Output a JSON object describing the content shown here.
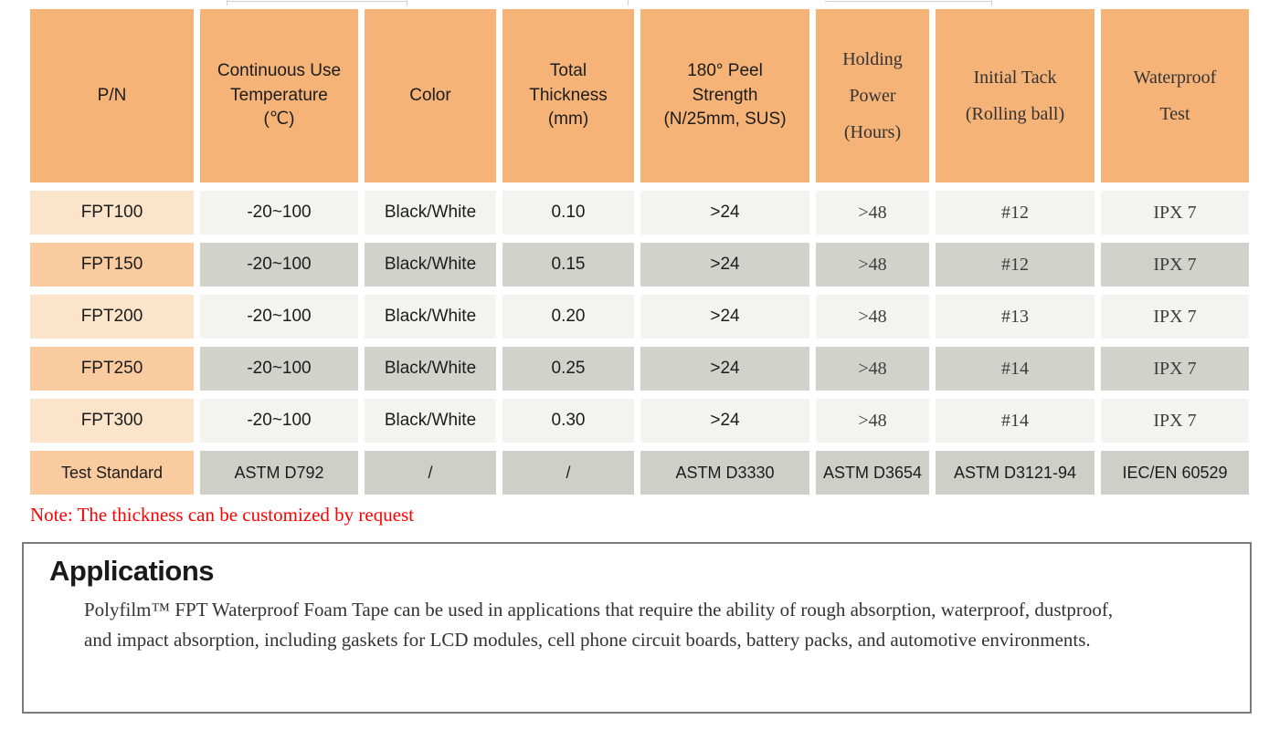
{
  "colors": {
    "header_bg": "#F5B377",
    "pn_cell_light": "#FCE4CB",
    "pn_cell_dark": "#F9CB9E",
    "row_light": "#F3F3EF",
    "row_dark": "#D2D2CC",
    "test_row_bg": "#CFCFC9",
    "note_red": "#FF0000",
    "box_border": "#7B7B7B"
  },
  "table": {
    "column_ids": [
      "pn",
      "temperature",
      "color",
      "thickness",
      "peel-strength",
      "holding-power",
      "initial-tack",
      "waterproof-test"
    ],
    "headers": [
      "P/N",
      "Continuous Use\nTemperature\n(℃)",
      "Color",
      "Total\nThickness\n(mm)",
      "180° Peel\nStrength\n(N/25mm, SUS)",
      "Holding\nPower\n(Hours)",
      "Initial Tack\n(Rolling ball)",
      "Waterproof\nTest"
    ],
    "body_rows": [
      {
        "variant": "light",
        "cells": [
          "FPT100",
          "-20~100",
          "Black/White",
          "0.10",
          ">24",
          ">48",
          "#12",
          "IPX 7"
        ]
      },
      {
        "variant": "dark",
        "cells": [
          "FPT150",
          "-20~100",
          "Black/White",
          "0.15",
          ">24",
          ">48",
          "#12",
          "IPX 7"
        ]
      },
      {
        "variant": "light",
        "cells": [
          "FPT200",
          "-20~100",
          "Black/White",
          "0.20",
          ">24",
          ">48",
          "#13",
          "IPX 7"
        ]
      },
      {
        "variant": "dark",
        "cells": [
          "FPT250",
          "-20~100",
          "Black/White",
          "0.25",
          ">24",
          ">48",
          "#14",
          "IPX 7"
        ]
      },
      {
        "variant": "light",
        "cells": [
          "FPT300",
          "-20~100",
          "Black/White",
          "0.30",
          ">24",
          ">48",
          "#14",
          "IPX 7"
        ]
      },
      {
        "variant": "test",
        "cells": [
          "Test Standard",
          "ASTM D792",
          "/",
          "/",
          "ASTM D3330",
          "ASTM D3654",
          "ASTM D3121-94",
          "IEC/EN 60529"
        ]
      }
    ]
  },
  "note": "Note: The thickness can be customized by request",
  "applications": {
    "title": "Applications",
    "body": "Polyfilm™ FPT Waterproof Foam Tape can be used in applications that require the ability of rough absorption, waterproof, dustproof, and impact absorption, including gaskets for LCD modules, cell phone circuit boards, battery packs, and automotive environments."
  }
}
